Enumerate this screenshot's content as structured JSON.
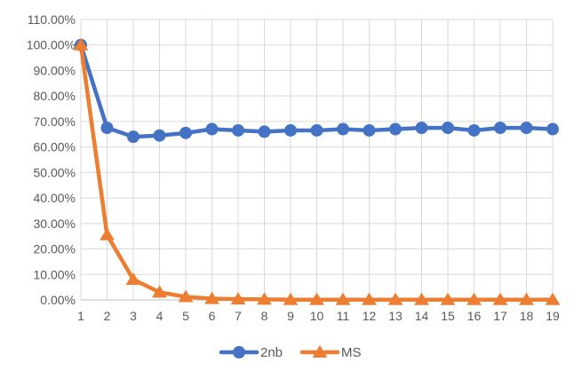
{
  "chart_data": {
    "type": "line",
    "title": "",
    "xlabel": "",
    "ylabel": "",
    "x": [
      1,
      2,
      3,
      4,
      5,
      6,
      7,
      8,
      9,
      10,
      11,
      12,
      13,
      14,
      15,
      16,
      17,
      18,
      19
    ],
    "x_tick_labels": [
      "1",
      "2",
      "3",
      "4",
      "5",
      "6",
      "7",
      "8",
      "9",
      "10",
      "11",
      "12",
      "13",
      "14",
      "15",
      "16",
      "17",
      "18",
      "19"
    ],
    "ylim": [
      0,
      110
    ],
    "y_ticks": [
      0,
      10,
      20,
      30,
      40,
      50,
      60,
      70,
      80,
      90,
      100,
      110
    ],
    "y_tick_labels": [
      "0.00%",
      "10.00%",
      "20.00%",
      "30.00%",
      "40.00%",
      "50.00%",
      "60.00%",
      "70.00%",
      "80.00%",
      "90.00%",
      "100.00%",
      "110.00%"
    ],
    "grid": true,
    "legend_position": "bottom",
    "series": [
      {
        "name": "2nb",
        "color": "#4472C4",
        "marker": "circle",
        "values": [
          100,
          67.5,
          64,
          64.5,
          65.5,
          67,
          66.5,
          66,
          66.5,
          66.5,
          67,
          66.5,
          67,
          67.5,
          67.5,
          66.5,
          67.5,
          67.5,
          67
        ]
      },
      {
        "name": "MS",
        "color": "#ED7D31",
        "marker": "triangle",
        "values": [
          100,
          25.5,
          8,
          3,
          1.2,
          0.5,
          0.3,
          0.2,
          0.1,
          0.1,
          0.1,
          0.1,
          0.1,
          0.1,
          0.1,
          0.1,
          0.1,
          0.1,
          0.1
        ]
      }
    ]
  }
}
